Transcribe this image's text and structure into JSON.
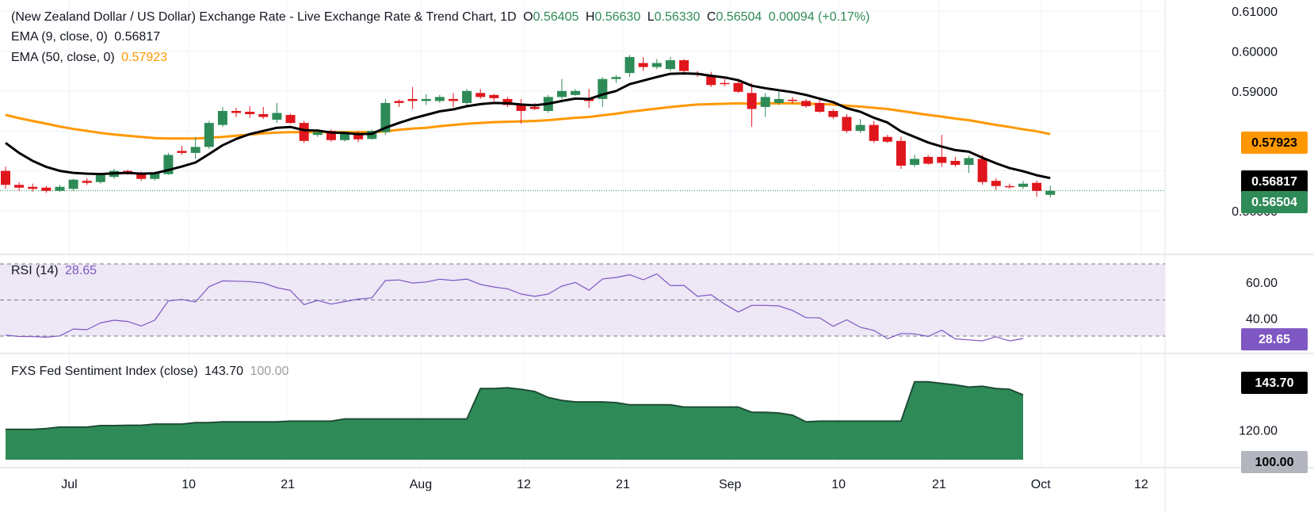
{
  "header": {
    "title": "(New Zealand Dollar / US Dollar) Exchange Rate - Live Exchange Rate & Trend Chart, 1D",
    "o_label": "O",
    "o_value": "0.56405",
    "h_label": "H",
    "h_value": "0.56630",
    "l_label": "L",
    "l_value": "0.56330",
    "c_label": "C",
    "c_value": "0.56504",
    "change": "0.00094 (+0.17%)"
  },
  "ema9": {
    "label": "EMA (9, close, 0)",
    "value": "0.56817"
  },
  "ema50": {
    "label": "EMA (50, close, 0)",
    "value": "0.57923"
  },
  "rsi_legend": {
    "label": "RSI (14)",
    "value": "28.65"
  },
  "fxs_legend": {
    "label": "FXS Fed Sentiment Index (close)",
    "value": "143.70",
    "baseline": "100.00"
  },
  "colors": {
    "up": "#2e8b57",
    "down": "#e0161d",
    "ema9": "#000000",
    "ema50": "#ff9800",
    "rsi": "#7e57c2",
    "rsi_band": "#ede7f6",
    "fxs_fill": "#2e8b57",
    "grid": "#f0f3fa",
    "axis_text": "#131722"
  },
  "chart_data": [
    {
      "type": "candlestick",
      "title": "(New Zealand Dollar / US Dollar) Exchange Rate - Live Exchange Rate & Trend Chart, 1D",
      "x_ticks": [
        "Jul",
        "10",
        "21",
        "Aug",
        "12",
        "21",
        "Sep",
        "10",
        "21",
        "Oct",
        "12"
      ],
      "y_ticks": [
        "0.61000",
        "0.60000",
        "0.59000",
        "0.56000"
      ],
      "ylim": [
        0.556,
        0.6115
      ],
      "price_labels": [
        {
          "value": "0.57923",
          "series": "ema50"
        },
        {
          "value": "0.56817",
          "series": "ema9"
        },
        {
          "value": "0.56504",
          "series": "last"
        }
      ],
      "candles": [
        [
          0.57,
          0.571,
          0.5655,
          0.5665
        ],
        [
          0.5665,
          0.5672,
          0.565,
          0.5658
        ],
        [
          0.566,
          0.5668,
          0.5648,
          0.5655
        ],
        [
          0.5658,
          0.5662,
          0.5645,
          0.565
        ],
        [
          0.565,
          0.5665,
          0.5647,
          0.566
        ],
        [
          0.5655,
          0.568,
          0.565,
          0.5678
        ],
        [
          0.5675,
          0.5682,
          0.5665,
          0.567
        ],
        [
          0.5672,
          0.5695,
          0.5668,
          0.569
        ],
        [
          0.5685,
          0.5705,
          0.568,
          0.57
        ],
        [
          0.57,
          0.5703,
          0.569,
          0.5695
        ],
        [
          0.5695,
          0.5698,
          0.5675,
          0.568
        ],
        [
          0.568,
          0.5698,
          0.5676,
          0.5695
        ],
        [
          0.5692,
          0.5745,
          0.569,
          0.574
        ],
        [
          0.575,
          0.5763,
          0.574,
          0.5745
        ],
        [
          0.5745,
          0.5785,
          0.573,
          0.576
        ],
        [
          0.576,
          0.5825,
          0.5755,
          0.582
        ],
        [
          0.5815,
          0.586,
          0.581,
          0.585
        ],
        [
          0.585,
          0.5858,
          0.5835,
          0.5845
        ],
        [
          0.5848,
          0.5862,
          0.5833,
          0.5842
        ],
        [
          0.5842,
          0.586,
          0.583,
          0.5835
        ],
        [
          0.5828,
          0.587,
          0.582,
          0.5845
        ],
        [
          0.584,
          0.5843,
          0.5818,
          0.582
        ],
        [
          0.582,
          0.5825,
          0.577,
          0.5775
        ],
        [
          0.579,
          0.5803,
          0.5785,
          0.5797
        ],
        [
          0.58,
          0.5804,
          0.5773,
          0.5777
        ],
        [
          0.5777,
          0.5799,
          0.5773,
          0.5793
        ],
        [
          0.579,
          0.58,
          0.5772,
          0.5779
        ],
        [
          0.578,
          0.5803,
          0.5778,
          0.58
        ],
        [
          0.5797,
          0.588,
          0.579,
          0.587
        ],
        [
          0.5875,
          0.5879,
          0.586,
          0.587
        ],
        [
          0.588,
          0.591,
          0.5855,
          0.5875
        ],
        [
          0.5875,
          0.5892,
          0.5865,
          0.588
        ],
        [
          0.5875,
          0.589,
          0.587,
          0.5885
        ],
        [
          0.588,
          0.5895,
          0.586,
          0.5875
        ],
        [
          0.587,
          0.5905,
          0.5865,
          0.59
        ],
        [
          0.5895,
          0.5905,
          0.588,
          0.5885
        ],
        [
          0.589,
          0.5893,
          0.5875,
          0.5882
        ],
        [
          0.588,
          0.5885,
          0.586,
          0.5865
        ],
        [
          0.5865,
          0.588,
          0.5818,
          0.585
        ],
        [
          0.586,
          0.587,
          0.5852,
          0.5855
        ],
        [
          0.585,
          0.589,
          0.5845,
          0.5885
        ],
        [
          0.5885,
          0.593,
          0.588,
          0.59
        ],
        [
          0.589,
          0.5905,
          0.5888,
          0.59
        ],
        [
          0.588,
          0.5905,
          0.5858,
          0.5875
        ],
        [
          0.588,
          0.5935,
          0.586,
          0.593
        ],
        [
          0.593,
          0.594,
          0.592,
          0.5935
        ],
        [
          0.5945,
          0.599,
          0.5935,
          0.5985
        ],
        [
          0.597,
          0.5985,
          0.595,
          0.596
        ],
        [
          0.596,
          0.598,
          0.5955,
          0.597
        ],
        [
          0.5955,
          0.5985,
          0.595,
          0.5977
        ],
        [
          0.5977,
          0.598,
          0.594,
          0.595
        ],
        [
          0.5945,
          0.595,
          0.5935,
          0.594
        ],
        [
          0.594,
          0.5948,
          0.591,
          0.5915
        ],
        [
          0.592,
          0.593,
          0.5912,
          0.5918
        ],
        [
          0.592,
          0.5925,
          0.5895,
          0.5898
        ],
        [
          0.5895,
          0.592,
          0.581,
          0.5855
        ],
        [
          0.586,
          0.5895,
          0.5835,
          0.5885
        ],
        [
          0.587,
          0.59,
          0.5865,
          0.588
        ],
        [
          0.5878,
          0.5885,
          0.5868,
          0.5875
        ],
        [
          0.5875,
          0.588,
          0.5858,
          0.5862
        ],
        [
          0.587,
          0.5878,
          0.5845,
          0.5848
        ],
        [
          0.585,
          0.5855,
          0.583,
          0.5835
        ],
        [
          0.5835,
          0.5842,
          0.5795,
          0.58
        ],
        [
          0.58,
          0.583,
          0.5795,
          0.5815
        ],
        [
          0.5815,
          0.5825,
          0.577,
          0.5775
        ],
        [
          0.5785,
          0.579,
          0.577,
          0.5773
        ],
        [
          0.5775,
          0.5785,
          0.5705,
          0.5713
        ],
        [
          0.5715,
          0.574,
          0.571,
          0.573
        ],
        [
          0.5735,
          0.574,
          0.5715,
          0.5718
        ],
        [
          0.5735,
          0.579,
          0.571,
          0.572
        ],
        [
          0.5725,
          0.5735,
          0.571,
          0.5715
        ],
        [
          0.5715,
          0.5738,
          0.5695,
          0.5732
        ],
        [
          0.573,
          0.574,
          0.5665,
          0.5672
        ],
        [
          0.5675,
          0.5682,
          0.5652,
          0.5662
        ],
        [
          0.5662,
          0.5668,
          0.5655,
          0.566
        ],
        [
          0.566,
          0.5675,
          0.5655,
          0.5668
        ],
        [
          0.567,
          0.5676,
          0.5635,
          0.565
        ],
        [
          0.564,
          0.5663,
          0.5633,
          0.565
        ]
      ],
      "ema9": [
        0.577,
        0.5745,
        0.5725,
        0.571,
        0.57,
        0.5695,
        0.5693,
        0.5692,
        0.5694,
        0.5695,
        0.5693,
        0.5694,
        0.5702,
        0.5711,
        0.5721,
        0.5742,
        0.5764,
        0.578,
        0.5792,
        0.58,
        0.5808,
        0.581,
        0.5802,
        0.5801,
        0.5796,
        0.5795,
        0.5792,
        0.5793,
        0.5808,
        0.582,
        0.5831,
        0.584,
        0.5849,
        0.5854,
        0.5862,
        0.5867,
        0.587,
        0.5869,
        0.5866,
        0.5864,
        0.5868,
        0.5875,
        0.5881,
        0.588,
        0.5891,
        0.59,
        0.5917,
        0.5926,
        0.5935,
        0.5943,
        0.5944,
        0.5943,
        0.5938,
        0.5934,
        0.5927,
        0.5913,
        0.5907,
        0.5902,
        0.5897,
        0.589,
        0.5881,
        0.5872,
        0.5857,
        0.5848,
        0.5833,
        0.5821,
        0.5799,
        0.5785,
        0.5771,
        0.5761,
        0.5752,
        0.5748,
        0.5733,
        0.5719,
        0.5707,
        0.5699,
        0.5689,
        0.5682
      ],
      "ema50": [
        0.584,
        0.5832,
        0.5825,
        0.5818,
        0.5811,
        0.5805,
        0.58,
        0.5795,
        0.5791,
        0.5788,
        0.5785,
        0.5782,
        0.5781,
        0.5781,
        0.5781,
        0.5783,
        0.5785,
        0.5788,
        0.5791,
        0.5794,
        0.5796,
        0.5797,
        0.5797,
        0.5797,
        0.5797,
        0.5797,
        0.5797,
        0.5797,
        0.5799,
        0.5803,
        0.5806,
        0.5808,
        0.5812,
        0.5815,
        0.5818,
        0.582,
        0.5822,
        0.5823,
        0.5824,
        0.5825,
        0.5827,
        0.583,
        0.5833,
        0.5835,
        0.5839,
        0.5843,
        0.5848,
        0.5852,
        0.5856,
        0.586,
        0.5863,
        0.5866,
        0.5867,
        0.5868,
        0.5869,
        0.5868,
        0.5869,
        0.5869,
        0.5869,
        0.5868,
        0.5867,
        0.5866,
        0.5863,
        0.5861,
        0.5858,
        0.5855,
        0.585,
        0.5845,
        0.584,
        0.5836,
        0.5831,
        0.5827,
        0.5821,
        0.5815,
        0.581,
        0.5804,
        0.5799,
        0.5792
      ]
    },
    {
      "type": "line",
      "title": "RSI (14)",
      "y_ticks": [
        "60.00",
        "40.00"
      ],
      "ylim": [
        24,
        73
      ],
      "bands": [
        30,
        50,
        70
      ],
      "last_label": "28.65",
      "values": [
        30.5,
        29.8,
        29.7,
        29.4,
        30.1,
        33.9,
        33.5,
        37.3,
        38.8,
        38.1,
        35.6,
        38.8,
        49.5,
        50.3,
        48.9,
        57.4,
        60.6,
        60.4,
        60.2,
        59.4,
        56.8,
        55.3,
        47.4,
        49.8,
        47.7,
        49.1,
        50.5,
        51.2,
        60.8,
        61.1,
        59.4,
        60.0,
        61.5,
        60.8,
        61.6,
        58.6,
        57.2,
        56.2,
        53.3,
        52.0,
        53.3,
        57.7,
        59.7,
        55.4,
        61.7,
        62.5,
        64.0,
        61.2,
        64.4,
        58.0,
        58.1,
        52.0,
        52.9,
        47.7,
        43.3,
        47.0,
        47.0,
        46.7,
        44.2,
        40.2,
        40.1,
        35.4,
        39.0,
        34.9,
        33.1,
        28.5,
        31.4,
        31.2,
        29.8,
        33.3,
        28.4,
        27.9,
        27.3,
        29.6,
        27.3,
        28.65
      ]
    },
    {
      "type": "area",
      "title": "FXS Fed Sentiment Index (close)",
      "y_ticks": [
        "120.00",
        "100.00"
      ],
      "ylim": [
        100,
        155
      ],
      "last_label": "143.70",
      "baseline_label": "100.00",
      "values": [
        120.5,
        120.5,
        120.5,
        121.0,
        122.0,
        122.0,
        122.0,
        123.0,
        123.0,
        123.2,
        123.2,
        124.0,
        124.0,
        124.0,
        125.0,
        125.0,
        125.5,
        125.5,
        125.5,
        125.5,
        125.5,
        126.0,
        126.0,
        126.0,
        126.0,
        127.5,
        127.5,
        127.5,
        127.5,
        127.5,
        127.5,
        127.5,
        127.5,
        127.5,
        127.5,
        148.0,
        148.0,
        148.5,
        147.5,
        146.0,
        142.0,
        140.0,
        139.0,
        139.0,
        139.0,
        138.5,
        137.0,
        137.0,
        137.0,
        137.0,
        135.5,
        135.5,
        135.5,
        135.5,
        135.5,
        132.0,
        132.0,
        131.5,
        130.0,
        125.5,
        126.0,
        126.0,
        126.0,
        126.0,
        126.0,
        126.0,
        126.0,
        152.5,
        152.5,
        151.5,
        150.5,
        149.0,
        149.5,
        148.0,
        147.5,
        143.7
      ]
    }
  ]
}
